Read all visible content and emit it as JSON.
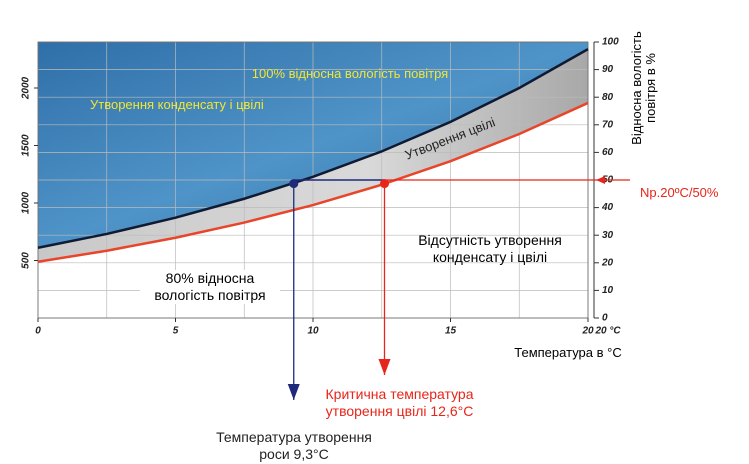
{
  "chart_data": {
    "type": "line",
    "x": [
      0,
      2.5,
      5,
      7.5,
      10,
      12.5,
      15,
      17.5,
      20
    ],
    "series": [
      {
        "name": "100% відносна вологість повітря",
        "color": "#111a33",
        "values": [
          611,
          731,
          872,
          1037,
          1228,
          1449,
          1705,
          2000,
          2338
        ]
      },
      {
        "name": "80% відносна вологість повітря",
        "color": "#e8452a",
        "values": [
          489,
          585,
          698,
          830,
          982,
          1159,
          1364,
          1600,
          1870
        ]
      }
    ],
    "xlim": [
      0,
      20
    ],
    "xticks": [
      0,
      5,
      10,
      15,
      20
    ],
    "ylim": [
      0,
      2400
    ],
    "yticks": [
      500,
      1000,
      1500,
      2000
    ],
    "y2lim": [
      0,
      100
    ],
    "y2ticks": [
      0,
      10,
      20,
      30,
      40,
      50,
      60,
      70,
      80,
      90,
      100
    ],
    "xlabel": "Температура в °C",
    "y2label": "Відносна вологість повітря в %",
    "x_unit_tick": "20 °C",
    "points": [
      {
        "x": 9.3,
        "y": 1169,
        "color": "#1f2a7a",
        "label": "Температура утворення роси 9,3°C"
      },
      {
        "x": 12.6,
        "y": 1169,
        "color": "#e8251a",
        "label": "Критична температура утворення цвілі 12,6°C"
      }
    ],
    "reference": {
      "value": 50,
      "label": "Np.20ºC/50%"
    },
    "annotations": [
      "Утворення конденсату і цвілі",
      "Утворення цвілі",
      "Відсутність утворення конденсату і цвілі"
    ],
    "grid": true
  }
}
